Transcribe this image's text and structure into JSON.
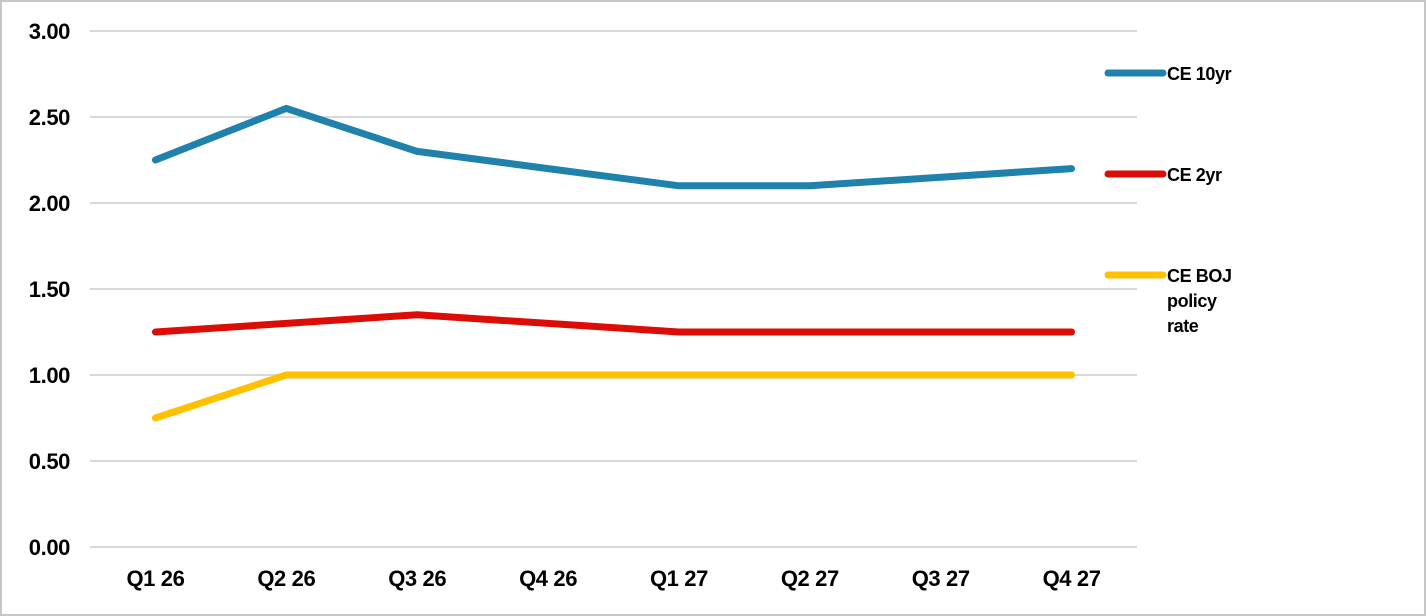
{
  "chart_data": {
    "type": "line",
    "categories": [
      "Q1 26",
      "Q2 26",
      "Q3 26",
      "Q4 26",
      "Q1 27",
      "Q2 27",
      "Q3 27",
      "Q4 27"
    ],
    "series": [
      {
        "name": "CE 10yr",
        "color": "#1F81AC",
        "values": [
          2.25,
          2.55,
          2.3,
          2.2,
          2.1,
          2.1,
          2.15,
          2.2
        ]
      },
      {
        "name": "CE 2yr",
        "color": "#DC0D07",
        "values": [
          1.25,
          1.3,
          1.35,
          1.3,
          1.25,
          1.25,
          1.25,
          1.25
        ]
      },
      {
        "name": "CE BOJ policy rate",
        "color": "#FFC000",
        "values": [
          0.75,
          1.0,
          1.0,
          1.0,
          1.0,
          1.0,
          1.0,
          1.0
        ]
      }
    ],
    "ylim": [
      0.0,
      3.0
    ],
    "ytick_labels": [
      "0.00",
      "0.50",
      "1.00",
      "1.50",
      "2.00",
      "2.50",
      "3.00"
    ],
    "grid": true,
    "legend_position": "right",
    "legend": [
      {
        "series": "CE 10yr",
        "lines": [
          "CE 10yr"
        ]
      },
      {
        "series": "CE 2yr",
        "lines": [
          "CE 2yr"
        ]
      },
      {
        "series": "CE BOJ policy rate",
        "lines": [
          "CE BOJ",
          "policy",
          "rate"
        ]
      }
    ]
  },
  "colors": {
    "gridline": "#D9D9D9",
    "axis_text": "#000000",
    "frame_border": "#C6C6C6",
    "background": "#FFFFFF"
  }
}
